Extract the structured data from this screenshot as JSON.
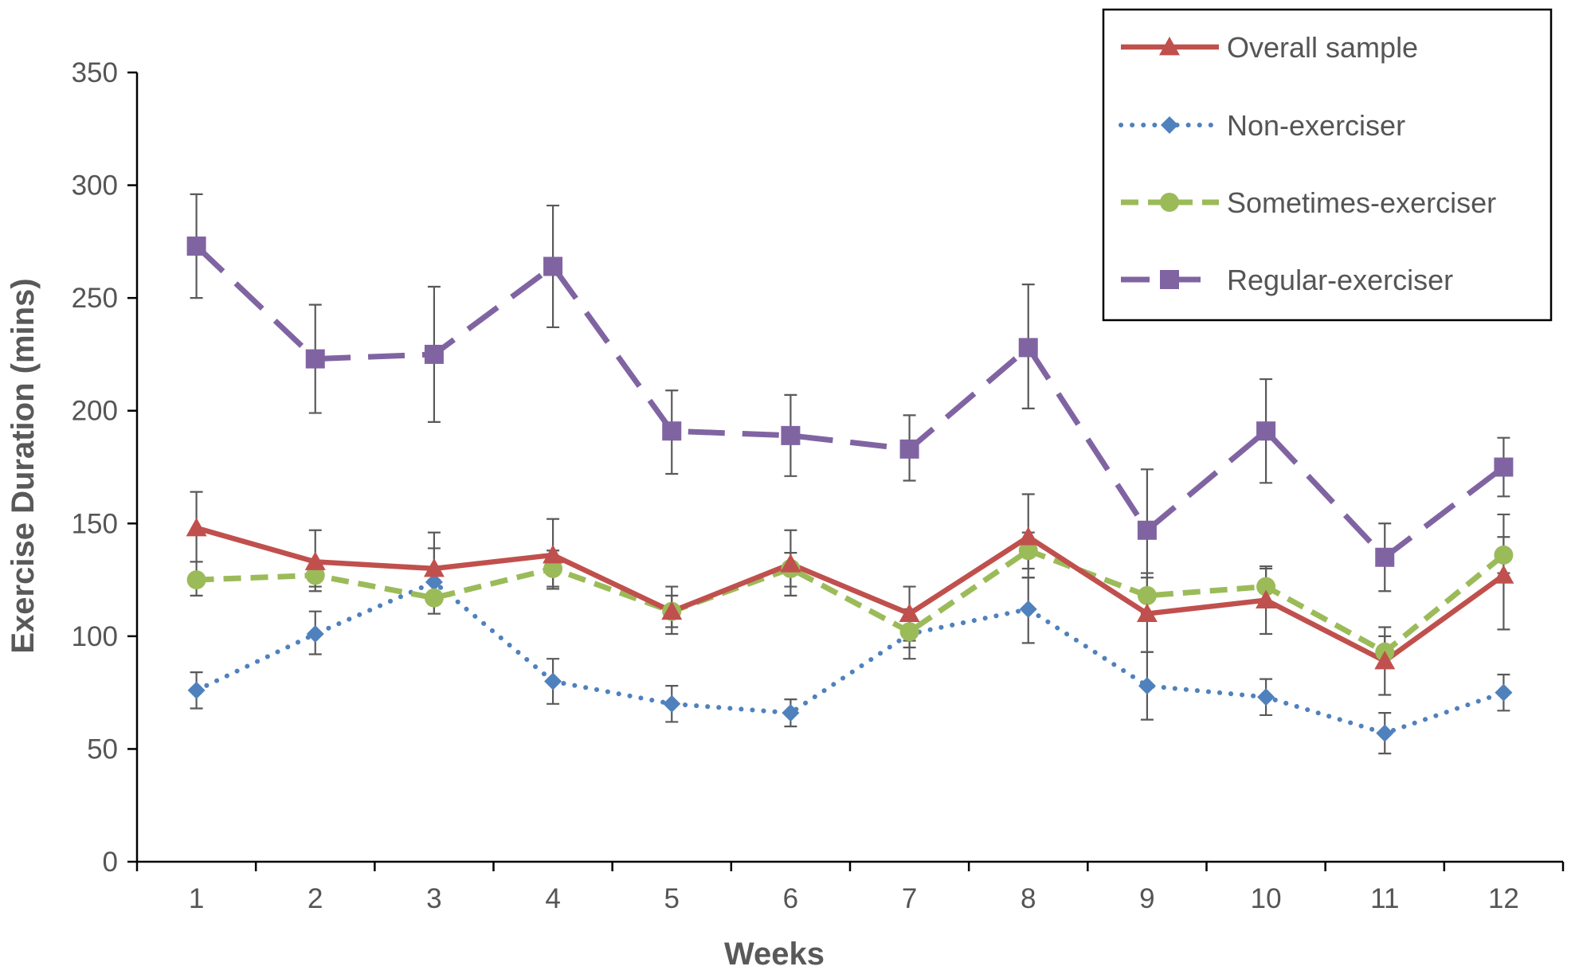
{
  "chart_data": {
    "type": "line",
    "title": "",
    "xlabel": "Weeks",
    "ylabel": "Exercise Duration (mins)",
    "categories": [
      "1",
      "2",
      "3",
      "4",
      "5",
      "6",
      "7",
      "8",
      "9",
      "10",
      "11",
      "12"
    ],
    "ylim": [
      0,
      350
    ],
    "yticks": [
      0,
      50,
      100,
      150,
      200,
      250,
      300,
      350
    ],
    "legend_position": "top-right",
    "grid": false,
    "series": [
      {
        "name": "Overall sample",
        "color": "#C0504D",
        "marker": "triangle",
        "line_style": "solid",
        "values": [
          148,
          133,
          130,
          136,
          111,
          132,
          110,
          144,
          110,
          116,
          89,
          127
        ],
        "err_low": [
          133,
          120,
          115,
          121,
          101,
          118,
          98,
          126,
          93,
          101,
          74,
          103
        ],
        "err_high": [
          164,
          147,
          146,
          152,
          122,
          147,
          122,
          163,
          128,
          131,
          104,
          154
        ]
      },
      {
        "name": "Non-exerciser",
        "color": "#4F81BD",
        "marker": "diamond",
        "line_style": "dotted",
        "values": [
          76,
          101,
          124,
          80,
          70,
          66,
          101,
          112,
          78,
          73,
          57,
          75
        ],
        "err_low": [
          68,
          92,
          110,
          70,
          62,
          60,
          90,
          97,
          63,
          65,
          48,
          67
        ],
        "err_high": [
          84,
          111,
          139,
          90,
          78,
          72,
          112,
          126,
          93,
          81,
          66,
          83
        ]
      },
      {
        "name": "Sometimes-exerciser",
        "color": "#9BBB59",
        "marker": "circle",
        "line_style": "dashed",
        "values": [
          125,
          127,
          117,
          130,
          111,
          130,
          102,
          138,
          118,
          122,
          93,
          136
        ],
        "err_low": [
          118,
          122,
          110,
          122,
          104,
          122,
          95,
          130,
          110,
          114,
          86,
          128
        ],
        "err_high": [
          133,
          133,
          125,
          138,
          118,
          137,
          109,
          146,
          126,
          130,
          100,
          144
        ]
      },
      {
        "name": "Regular-exerciser",
        "color": "#8064A2",
        "marker": "square",
        "line_style": "long-dash",
        "values": [
          273,
          223,
          225,
          264,
          191,
          189,
          183,
          228,
          147,
          191,
          135,
          175
        ],
        "err_low": [
          250,
          199,
          195,
          237,
          172,
          171,
          169,
          201,
          120,
          168,
          120,
          162
        ],
        "err_high": [
          296,
          247,
          255,
          291,
          209,
          207,
          198,
          256,
          174,
          214,
          150,
          188
        ]
      }
    ]
  }
}
